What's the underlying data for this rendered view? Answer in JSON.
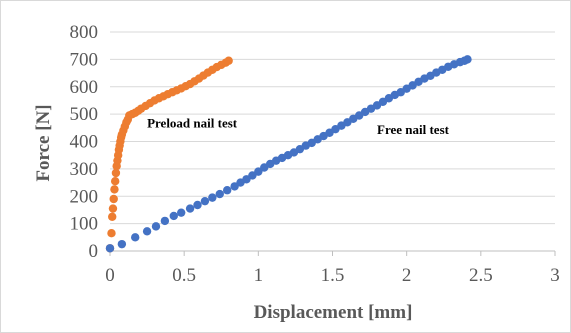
{
  "chart_data": {
    "type": "scatter",
    "title": "",
    "xlabel": "Displacement [mm]",
    "ylabel": "Force [N]",
    "xlim": [
      0,
      3
    ],
    "ylim": [
      0,
      800
    ],
    "x_ticks": [
      "0",
      "0.5",
      "1",
      "1.5",
      "2",
      "2.5",
      "3"
    ],
    "y_ticks": [
      "0",
      "100",
      "200",
      "300",
      "400",
      "500",
      "600",
      "700",
      "800"
    ],
    "grid": "horizontal",
    "legend": "none",
    "annotations": [
      {
        "text": "Preload nail test",
        "x": 0.25,
        "y": 470
      },
      {
        "text": "Free nail test",
        "x": 1.8,
        "y": 445
      }
    ],
    "series": [
      {
        "color": "#ed7d31",
        "x": [
          0.0,
          0.01,
          0.015,
          0.02,
          0.025,
          0.03,
          0.035,
          0.04,
          0.045,
          0.05,
          0.055,
          0.06,
          0.065,
          0.07,
          0.075,
          0.08,
          0.09,
          0.1,
          0.11,
          0.12,
          0.13,
          0.15,
          0.17,
          0.19,
          0.21,
          0.24,
          0.27,
          0.3,
          0.33,
          0.36,
          0.39,
          0.42,
          0.45,
          0.48,
          0.51,
          0.54,
          0.57,
          0.6,
          0.63,
          0.66,
          0.69,
          0.72,
          0.75,
          0.78,
          0.8
        ],
        "y": [
          10,
          65,
          125,
          155,
          190,
          225,
          255,
          285,
          310,
          330,
          350,
          370,
          385,
          400,
          415,
          425,
          440,
          455,
          470,
          480,
          495,
          500,
          505,
          512,
          520,
          530,
          540,
          550,
          558,
          565,
          573,
          580,
          587,
          594,
          602,
          610,
          620,
          630,
          641,
          652,
          662,
          672,
          680,
          688,
          695
        ]
      },
      {
        "color": "#4472c4",
        "x": [
          0.0,
          0.08,
          0.17,
          0.25,
          0.31,
          0.37,
          0.43,
          0.48,
          0.54,
          0.59,
          0.64,
          0.69,
          0.74,
          0.79,
          0.84,
          0.88,
          0.92,
          0.96,
          1.0,
          1.04,
          1.08,
          1.12,
          1.16,
          1.2,
          1.24,
          1.28,
          1.32,
          1.36,
          1.4,
          1.44,
          1.48,
          1.52,
          1.56,
          1.6,
          1.64,
          1.68,
          1.72,
          1.76,
          1.8,
          1.84,
          1.88,
          1.92,
          1.96,
          2.0,
          2.04,
          2.08,
          2.12,
          2.16,
          2.2,
          2.24,
          2.28,
          2.32,
          2.36,
          2.39,
          2.41
        ],
        "y": [
          10,
          25,
          50,
          72,
          90,
          110,
          128,
          140,
          155,
          168,
          182,
          195,
          208,
          222,
          236,
          250,
          262,
          276,
          290,
          305,
          318,
          330,
          340,
          350,
          360,
          372,
          385,
          395,
          408,
          420,
          432,
          445,
          458,
          470,
          483,
          495,
          508,
          520,
          532,
          545,
          558,
          570,
          580,
          593,
          605,
          618,
          630,
          640,
          652,
          662,
          673,
          682,
          690,
          695,
          700
        ]
      }
    ]
  }
}
